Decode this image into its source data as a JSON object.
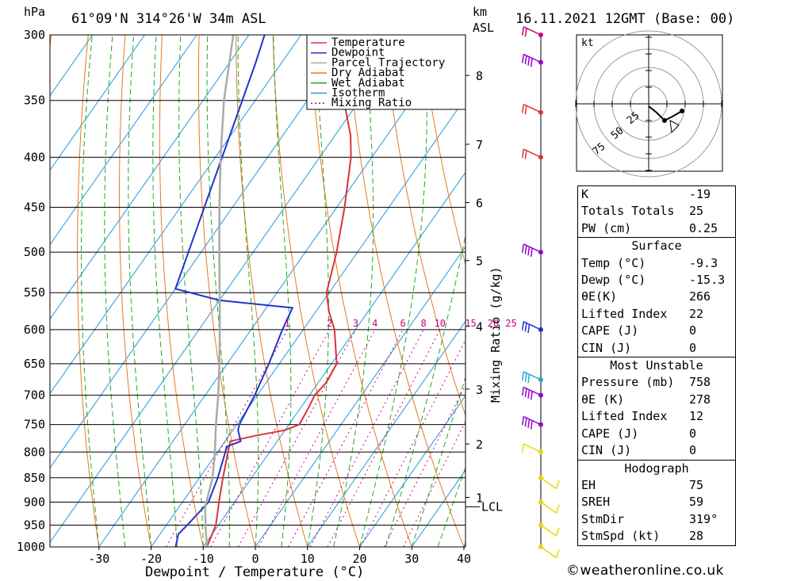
{
  "header": {
    "hpa_unit": "hPa",
    "location": "61°09'N  314°26'W  34m  ASL",
    "km_unit": "km",
    "km_sub": "ASL",
    "datetime": "16.11.2021  12GMT  (Base: 00)"
  },
  "axes": {
    "xlabel": "Dewpoint / Temperature (°C)",
    "right_label": "Mixing Ratio (g/kg)",
    "lcl_label": "LCL"
  },
  "legend": [
    "Temperature",
    "Dewpoint",
    "Parcel Trajectory",
    "Dry Adiabat",
    "Wet Adiabat",
    "Isotherm",
    "Mixing Ratio"
  ],
  "colors": {
    "temperature": "#dd3333",
    "dewpoint": "#2233cc",
    "parcel": "#aaaaaa",
    "dry_adiabat": "#e87a1e",
    "wet_adiabat": "#22aa22",
    "isotherm": "#2299dd",
    "mixing_ratio": "#cc0077"
  },
  "chart_data": {
    "type": "line",
    "title": "",
    "xlabel": "Dewpoint / Temperature (°C)",
    "ylabel": "hPa",
    "pressure_levels": [
      300,
      350,
      400,
      450,
      500,
      550,
      600,
      650,
      700,
      750,
      800,
      850,
      900,
      950,
      1000
    ],
    "temperature_ticks": [
      -30,
      -20,
      -10,
      0,
      10,
      20,
      30,
      40
    ],
    "xlim": [
      -40,
      40
    ],
    "ylim": [
      1000,
      300
    ],
    "y_scale": "log",
    "km_ticks": [
      {
        "km": 1,
        "p": 890
      },
      {
        "km": 2,
        "p": 785
      },
      {
        "km": 3,
        "p": 690
      },
      {
        "km": 4,
        "p": 595
      },
      {
        "km": 5,
        "p": 510
      },
      {
        "km": 6,
        "p": 445
      },
      {
        "km": 7,
        "p": 388
      },
      {
        "km": 8,
        "p": 330
      }
    ],
    "lcl_pressure": 910,
    "mixing_ratio_labels": [
      "1",
      "2",
      "3",
      "4",
      "6",
      "8",
      "10",
      "15",
      "20",
      "25"
    ],
    "mixing_ratio_values": [
      1,
      2,
      3,
      4,
      6,
      8,
      10,
      15,
      20,
      25
    ],
    "series": [
      {
        "name": "Temperature",
        "points": [
          [
            1000,
            -9.3
          ],
          [
            950,
            -10.5
          ],
          [
            900,
            -13
          ],
          [
            850,
            -15.5
          ],
          [
            800,
            -18
          ],
          [
            780,
            -19
          ],
          [
            770,
            -15
          ],
          [
            760,
            -10
          ],
          [
            750,
            -8
          ],
          [
            720,
            -8.5
          ],
          [
            700,
            -9
          ],
          [
            680,
            -8.5
          ],
          [
            650,
            -9
          ],
          [
            600,
            -14
          ],
          [
            575,
            -17.5
          ],
          [
            550,
            -20.5
          ],
          [
            500,
            -24
          ],
          [
            450,
            -28.5
          ],
          [
            400,
            -34
          ],
          [
            380,
            -37
          ],
          [
            350,
            -43
          ],
          [
            320,
            -48.5
          ],
          [
            300,
            -51
          ]
        ]
      },
      {
        "name": "Dewpoint",
        "points": [
          [
            1000,
            -15.3
          ],
          [
            970,
            -16.5
          ],
          [
            950,
            -16
          ],
          [
            900,
            -15
          ],
          [
            850,
            -16.5
          ],
          [
            800,
            -18.5
          ],
          [
            790,
            -19
          ],
          [
            780,
            -17
          ],
          [
            760,
            -19
          ],
          [
            750,
            -19.5
          ],
          [
            700,
            -20.5
          ],
          [
            650,
            -22
          ],
          [
            600,
            -24
          ],
          [
            570,
            -25
          ],
          [
            560,
            -40
          ],
          [
            545,
            -50
          ],
          [
            320,
            -65
          ],
          [
            300,
            -67
          ]
        ]
      },
      {
        "name": "Parcel Trajectory",
        "points": [
          [
            1000,
            -9.3
          ],
          [
            950,
            -12.5
          ],
          [
            910,
            -15
          ],
          [
            850,
            -17.5
          ],
          [
            800,
            -20.5
          ],
          [
            750,
            -24
          ],
          [
            700,
            -27.5
          ],
          [
            650,
            -31.5
          ],
          [
            600,
            -36
          ],
          [
            550,
            -41
          ],
          [
            500,
            -46.5
          ],
          [
            450,
            -52.5
          ],
          [
            400,
            -59
          ],
          [
            350,
            -66
          ],
          [
            300,
            -73
          ]
        ]
      }
    ],
    "wind_barbs": [
      {
        "p": 1000,
        "color": "#dddd00",
        "speed": 5
      },
      {
        "p": 950,
        "color": "#dddd00",
        "speed": 5
      },
      {
        "p": 900,
        "color": "#dddd00",
        "speed": 10
      },
      {
        "p": 850,
        "color": "#dddd00",
        "speed": 10
      },
      {
        "p": 800,
        "color": "#dddd00",
        "speed": 10
      },
      {
        "p": 750,
        "color": "#9900cc",
        "speed": 35
      },
      {
        "p": 700,
        "color": "#9900cc",
        "speed": 35
      },
      {
        "p": 675,
        "color": "#22aacc",
        "speed": 30
      },
      {
        "p": 600,
        "color": "#2233cc",
        "speed": 30
      },
      {
        "p": 500,
        "color": "#9900cc",
        "speed": 40
      },
      {
        "p": 400,
        "color": "#dd3333",
        "speed": 15
      },
      {
        "p": 360,
        "color": "#dd3333",
        "speed": 20
      },
      {
        "p": 320,
        "color": "#9900cc",
        "speed": 40
      },
      {
        "p": 300,
        "color": "#cc0077",
        "speed": 15
      }
    ]
  },
  "hodograph": {
    "unit": "kt",
    "rings": [
      "25",
      "50",
      "75"
    ]
  },
  "indices": {
    "general": [
      {
        "label": "K",
        "value": "-19"
      },
      {
        "label": "Totals Totals",
        "value": "25"
      },
      {
        "label": "PW (cm)",
        "value": "0.25"
      }
    ],
    "surface_title": "Surface",
    "surface": [
      {
        "label": "Temp (°C)",
        "value": "-9.3"
      },
      {
        "label": "Dewp (°C)",
        "value": "-15.3"
      },
      {
        "label": "θE(K)",
        "value": "266"
      },
      {
        "label": "Lifted Index",
        "value": "22"
      },
      {
        "label": "CAPE (J)",
        "value": "0"
      },
      {
        "label": "CIN (J)",
        "value": "0"
      }
    ],
    "mu_title": "Most Unstable",
    "mu": [
      {
        "label": "Pressure (mb)",
        "value": "758"
      },
      {
        "label": "θE (K)",
        "value": "278"
      },
      {
        "label": "Lifted Index",
        "value": "12"
      },
      {
        "label": "CAPE (J)",
        "value": "0"
      },
      {
        "label": "CIN (J)",
        "value": "0"
      }
    ],
    "hodo_title": "Hodograph",
    "hodo": [
      {
        "label": "EH",
        "value": "75"
      },
      {
        "label": "SREH",
        "value": "59"
      },
      {
        "label": "StmDir",
        "value": "319°"
      },
      {
        "label": "StmSpd (kt)",
        "value": "28"
      }
    ]
  },
  "credit": "©weatheronline.co.uk"
}
